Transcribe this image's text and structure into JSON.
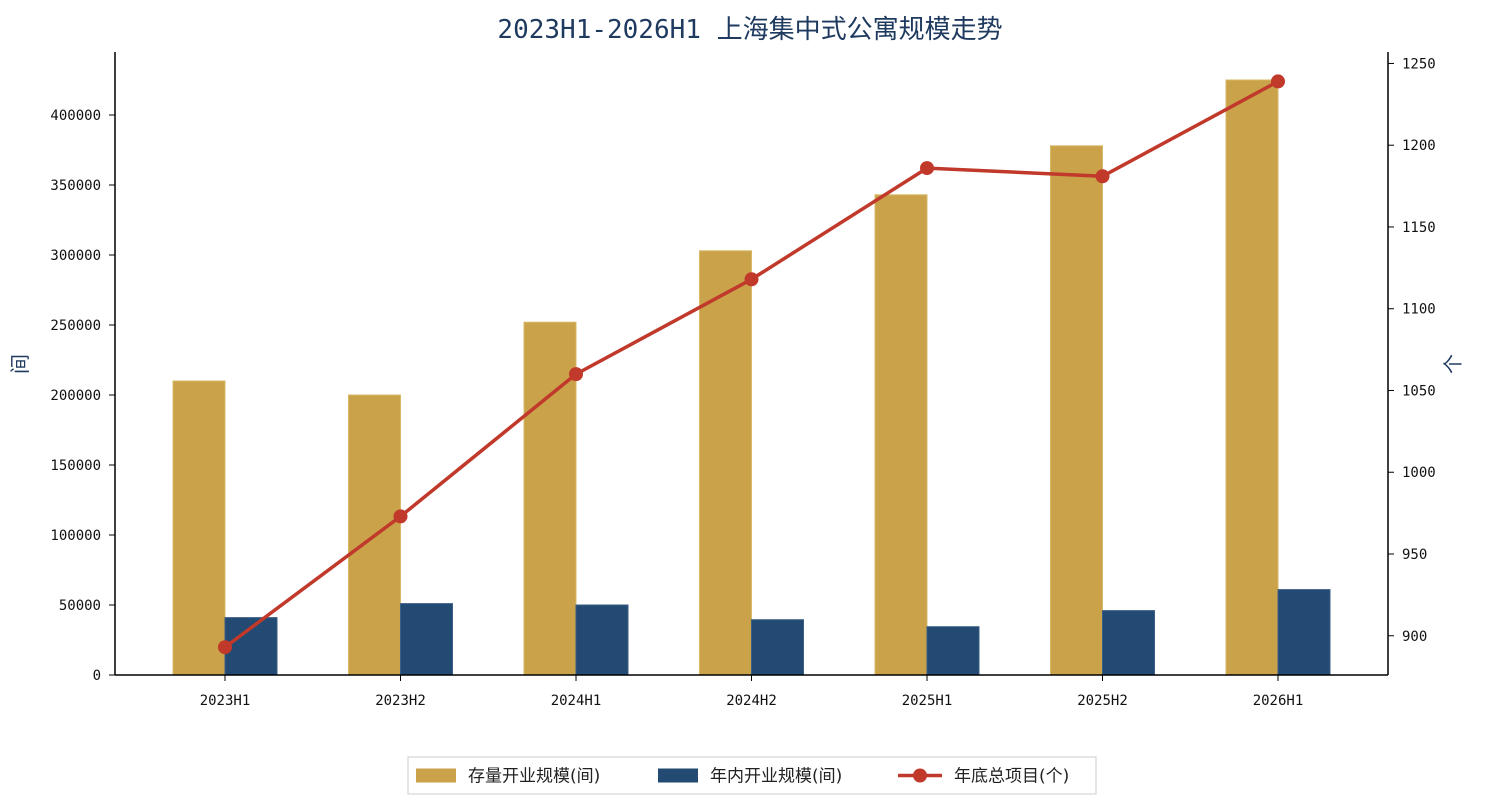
{
  "chart_data": {
    "type": "bar",
    "title": "2023H1-2026H1 上海集中式公寓规模走势",
    "categories": [
      "2023H1",
      "2023H2",
      "2024H1",
      "2024H2",
      "2025H1",
      "2025H2",
      "2026H1"
    ],
    "series": [
      {
        "name": "存量开业规模(间)",
        "type": "bar",
        "axis": "left",
        "color": "#c9a24a",
        "values": [
          210000,
          200000,
          252000,
          303000,
          343000,
          378000,
          425000
        ]
      },
      {
        "name": "年内开业规模(间)",
        "type": "bar",
        "axis": "left",
        "color": "#224a72",
        "values": [
          41000,
          51000,
          50000,
          39500,
          34500,
          46000,
          61000
        ]
      },
      {
        "name": "年底总项目(个)",
        "type": "line",
        "axis": "right",
        "color": "#c0392b",
        "values": [
          893,
          973,
          1060,
          1118,
          1186,
          1181,
          1239
        ]
      }
    ],
    "ylabel": "间",
    "ylabel_right": "个",
    "ylim": [
      0,
      445000
    ],
    "ylim_right": [
      876,
      1257
    ],
    "yticks": [
      0,
      50000,
      100000,
      150000,
      200000,
      250000,
      300000,
      350000,
      400000
    ],
    "yticks_right": [
      900,
      950,
      1000,
      1050,
      1100,
      1150,
      1200,
      1250
    ],
    "grid": false,
    "legend_position": "bottom-center"
  }
}
